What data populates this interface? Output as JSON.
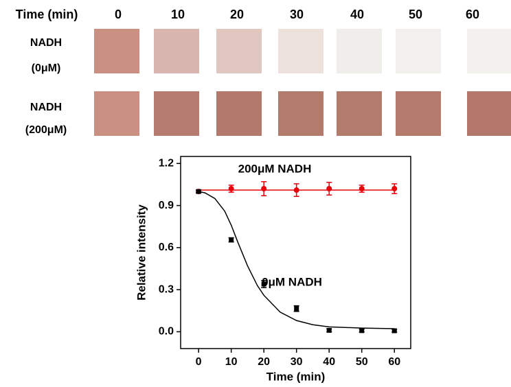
{
  "header": {
    "time_label": "Time (min)",
    "times": [
      "0",
      "10",
      "20",
      "30",
      "40",
      "50",
      "60"
    ]
  },
  "rows": [
    {
      "label": [
        "NADH",
        "(0μM)"
      ]
    },
    {
      "label": [
        "NADH",
        "(200μM)"
      ]
    }
  ],
  "chart_data": {
    "type": "errorbar",
    "xlabel": "Time (min)",
    "ylabel": "Relative intensity",
    "xlim": [
      -5.5,
      65
    ],
    "xticks": [
      0,
      10,
      20,
      30,
      40,
      50,
      60
    ],
    "ylim": [
      -0.12,
      1.25
    ],
    "yticks": [
      {
        "value": 0,
        "label": "0.0"
      },
      0.3,
      0.6,
      0.9,
      1.2
    ],
    "series": [
      {
        "name": "200μM NADH",
        "color": "#e8000b",
        "x": [
          0,
          10,
          20,
          30,
          40,
          50,
          60
        ],
        "values": [
          1.0,
          1.02,
          1.02,
          1.01,
          1.02,
          1.02,
          1.02
        ],
        "errors": [
          0.01,
          0.025,
          0.05,
          0.045,
          0.045,
          0.025,
          0.035
        ],
        "fit": {
          "x": [
            0,
            60
          ],
          "values": [
            1.01,
            1.01
          ]
        }
      },
      {
        "name": "0μM NADH",
        "color": "#000000",
        "x": [
          0,
          10,
          20,
          30,
          40,
          50,
          60
        ],
        "values": [
          1.0,
          0.655,
          0.34,
          0.165,
          0.01,
          0.008,
          0.007
        ],
        "errors": [
          0.01,
          0.015,
          0.025,
          0.02,
          0.01,
          0.01,
          0.01
        ],
        "fit": {
          "x": [
            0,
            2,
            5,
            8,
            10,
            12,
            15,
            18,
            20,
            25,
            30,
            35,
            40,
            50,
            60
          ],
          "values": [
            1.0,
            0.99,
            0.95,
            0.86,
            0.76,
            0.64,
            0.47,
            0.33,
            0.26,
            0.14,
            0.08,
            0.05,
            0.035,
            0.026,
            0.022
          ]
        }
      }
    ]
  }
}
